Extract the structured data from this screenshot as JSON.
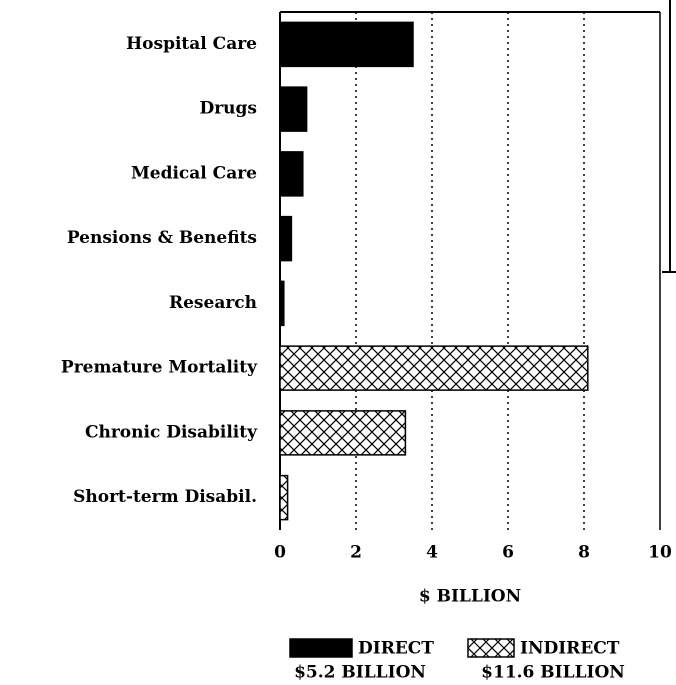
{
  "chart_data": {
    "type": "hbar",
    "categories": [
      "Hospital Care",
      "Drugs",
      "Medical Care",
      "Pensions & Benefits",
      "Research",
      "Premature Mortality",
      "Chronic Disability",
      "Short-term Disabil."
    ],
    "series": [
      {
        "name": "DIRECT",
        "total_label": "$5.2 BILLION",
        "color": "#000000",
        "pattern": "solid",
        "values": [
          3.5,
          0.7,
          0.6,
          0.3,
          0.1,
          null,
          null,
          null
        ]
      },
      {
        "name": "INDIRECT",
        "total_label": "$11.6 BILLION",
        "color": "#000000",
        "pattern": "crosshatch",
        "values": [
          null,
          null,
          null,
          null,
          null,
          8.1,
          3.3,
          0.2
        ]
      }
    ],
    "xlabel": "$ BILLION",
    "xlim": [
      0,
      10
    ],
    "xticks": [
      0,
      2,
      4,
      6,
      8,
      10
    ],
    "grid": true
  }
}
